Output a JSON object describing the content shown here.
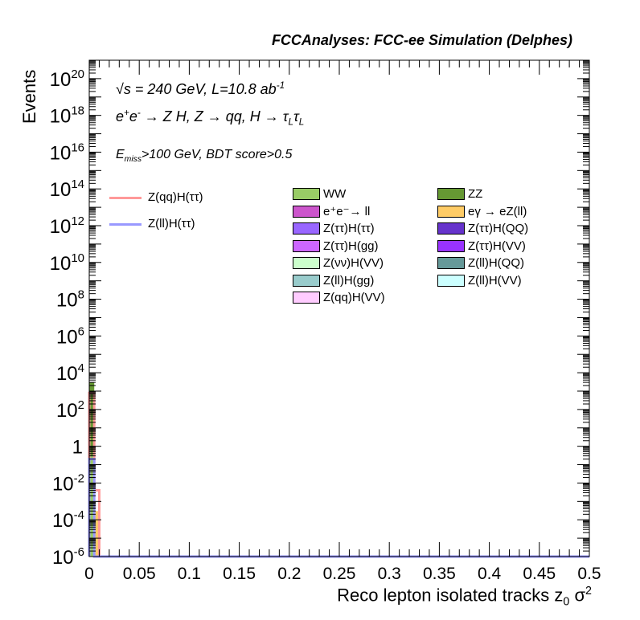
{
  "header": {
    "title": "FCCAnalyses: FCC-ee Simulation (Delphes)"
  },
  "annotations": {
    "line1": "√s = 240 GeV, L=10.8 ab",
    "line1_sup": "-1",
    "line2_a": "e",
    "line2_plus": "+",
    "line2_b": "e",
    "line2_minus": "-",
    "line2_c": " → Z H, Z  → qq, H  →  τ",
    "line2_sub1": "L",
    "line2_d": "τ",
    "line2_sub2": "L",
    "line3_a": "E",
    "line3_sub": "miss",
    "line3_b": ">100 GeV, BDT score>0.5"
  },
  "chart_data": {
    "type": "bar",
    "stacked": true,
    "log_y": true,
    "xlabel_a": "Reco lepton isolated tracks z",
    "xlabel_sub": "0",
    "xlabel_b": " σ",
    "xlabel_sup": "2",
    "ylabel": "Events",
    "xlim": [
      0,
      0.5
    ],
    "ylim": [
      1e-06,
      1e+21
    ],
    "x_ticks": [
      "0",
      "0.05",
      "0.1",
      "0.15",
      "0.2",
      "0.25",
      "0.3",
      "0.35",
      "0.4",
      "0.45",
      "0.5"
    ],
    "y_ticks": [
      {
        "base": "10",
        "exp": "20"
      },
      {
        "base": "10",
        "exp": "18"
      },
      {
        "base": "10",
        "exp": "16"
      },
      {
        "base": "10",
        "exp": "14"
      },
      {
        "base": "10",
        "exp": "12"
      },
      {
        "base": "10",
        "exp": "10"
      },
      {
        "base": "10",
        "exp": "8"
      },
      {
        "base": "10",
        "exp": "6"
      },
      {
        "base": "10",
        "exp": "4"
      },
      {
        "base": "10",
        "exp": "2"
      },
      {
        "base": "1",
        "exp": ""
      },
      {
        "base": "10",
        "exp": "-2"
      },
      {
        "base": "10",
        "exp": "-4"
      },
      {
        "base": "10",
        "exp": "-6"
      }
    ],
    "bin_width": 0.005,
    "backgrounds": [
      {
        "name": "WW",
        "color": "#99cc66",
        "values": [
          0.3,
          0,
          0
        ]
      },
      {
        "name": "ZZ",
        "color": "#669933",
        "values": [
          3000,
          0,
          0
        ]
      },
      {
        "name": "e⁺e⁻→ ll",
        "color": "#cc55cc",
        "values": [
          0,
          0,
          0
        ]
      },
      {
        "name": "eγ → eZ(ll)",
        "color": "#ffcc66",
        "values": [
          0.02,
          0.0003,
          0
        ]
      },
      {
        "name": "Z(ττ)H(ττ)",
        "color": "#9966ff",
        "values": [
          120,
          0,
          0
        ]
      },
      {
        "name": "Z(ττ)H(QQ)",
        "color": "#6633cc",
        "values": [
          60,
          0,
          0
        ]
      },
      {
        "name": "Z(ττ)H(gg)",
        "color": "#cc66ff",
        "values": [
          10,
          0,
          0
        ]
      },
      {
        "name": "Z(ττ)H(VV)",
        "color": "#9933ff",
        "values": [
          5,
          0,
          0
        ]
      },
      {
        "name": "Z(νν)H(VV)",
        "color": "#ccffcc",
        "values": [
          0,
          0,
          0
        ]
      },
      {
        "name": "Z(ll)H(QQ)",
        "color": "#669999",
        "values": [
          0.05,
          0,
          0
        ]
      },
      {
        "name": "Z(ll)H(gg)",
        "color": "#99cccc",
        "values": [
          0.01,
          0,
          0
        ]
      },
      {
        "name": "Z(ll)H(VV)",
        "color": "#ccffff",
        "values": [
          0.005,
          0,
          0
        ]
      },
      {
        "name": "Z(qq)H(VV)",
        "color": "#ffccff",
        "values": [
          0,
          0,
          0
        ]
      }
    ],
    "signals": [
      {
        "name": "Z(qq)H(ττ)",
        "color": "#ff9999",
        "values": [
          800,
          0.004,
          0
        ]
      },
      {
        "name": "Z(ll)H(ττ)",
        "color": "#9999ff",
        "values": [
          0.2,
          0,
          0
        ]
      }
    ]
  }
}
